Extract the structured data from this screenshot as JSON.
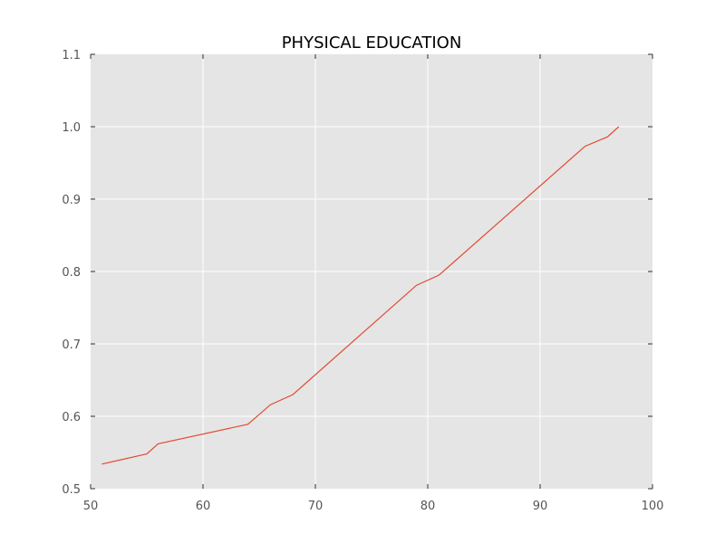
{
  "chart_data": {
    "type": "line",
    "title": "PHYSICAL EDUCATION",
    "xlabel": "",
    "ylabel": "",
    "xlim": [
      50,
      100
    ],
    "ylim": [
      0.5,
      1.1
    ],
    "xticks": [
      50,
      60,
      70,
      80,
      90,
      100
    ],
    "yticks": [
      0.5,
      0.6,
      0.7,
      0.8,
      0.9,
      1.0,
      1.1
    ],
    "xtick_labels": [
      "50",
      "60",
      "70",
      "80",
      "90",
      "100"
    ],
    "ytick_labels": [
      "0.5",
      "0.6",
      "0.7",
      "0.8",
      "0.9",
      "1.0",
      "1.1"
    ],
    "grid": true,
    "background_color": "#e5e5e5",
    "series": [
      {
        "color": "#e24a33",
        "x": [
          51,
          55,
          56,
          64,
          66,
          68,
          79,
          81,
          94,
          96,
          97
        ],
        "y": [
          0.534,
          0.548,
          0.562,
          0.589,
          0.616,
          0.63,
          0.781,
          0.795,
          0.973,
          0.986,
          1.0
        ]
      }
    ]
  }
}
